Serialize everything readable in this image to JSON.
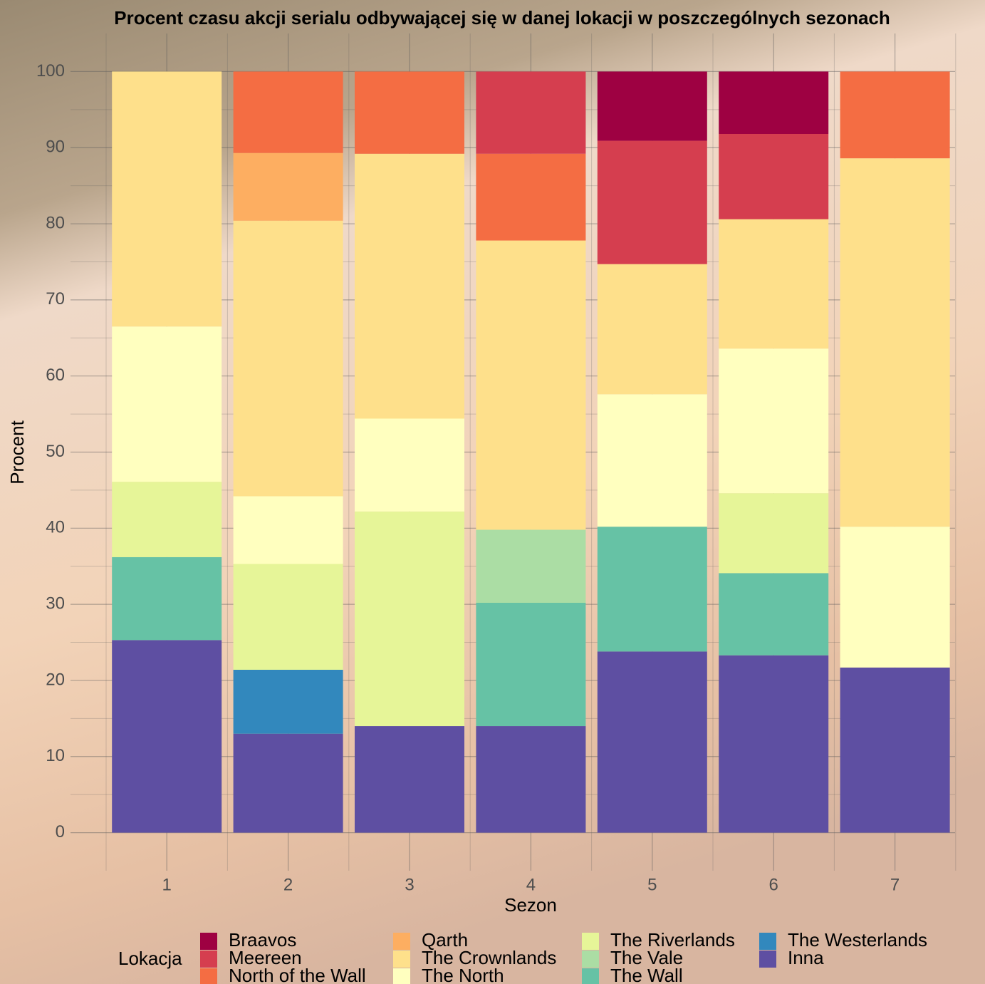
{
  "chart_data": {
    "type": "stacked_bar",
    "title": "Procent czasu akcji serialu odbywającej się w danej lokacji w poszczególnych sezonach",
    "x_label": "Sezon",
    "y_label": "Procent",
    "legend_title": "Lokacja",
    "categories": [
      "1",
      "2",
      "3",
      "4",
      "5",
      "6",
      "7"
    ],
    "series": [
      {
        "name": "Braavos",
        "color": "#9e0142",
        "values": [
          null,
          null,
          null,
          null,
          9.1,
          8.2,
          null
        ]
      },
      {
        "name": "Meereen",
        "color": "#d53e4f",
        "values": [
          null,
          null,
          null,
          10.8,
          16.2,
          11.2,
          null
        ]
      },
      {
        "name": "North of the Wall",
        "color": "#f46d43",
        "values": [
          null,
          10.7,
          10.8,
          11.4,
          null,
          null,
          11.4
        ]
      },
      {
        "name": "Qarth",
        "color": "#fdae61",
        "values": [
          null,
          8.9,
          null,
          null,
          null,
          null,
          null
        ]
      },
      {
        "name": "The Crownlands",
        "color": "#fee08b",
        "values": [
          33.5,
          36.2,
          34.8,
          38.0,
          17.1,
          17.0,
          48.4
        ]
      },
      {
        "name": "The North",
        "color": "#ffffbf",
        "values": [
          20.4,
          8.9,
          12.2,
          null,
          17.4,
          19.0,
          18.5
        ]
      },
      {
        "name": "The Riverlands",
        "color": "#e6f598",
        "values": [
          9.9,
          13.9,
          28.2,
          null,
          null,
          10.5,
          null
        ]
      },
      {
        "name": "The Vale",
        "color": "#abdda4",
        "values": [
          null,
          null,
          null,
          9.6,
          null,
          null,
          null
        ]
      },
      {
        "name": "The Wall",
        "color": "#66c2a5",
        "values": [
          10.9,
          null,
          null,
          16.2,
          16.4,
          10.8,
          null
        ]
      },
      {
        "name": "The Westerlands",
        "color": "#3288bd",
        "values": [
          null,
          8.4,
          null,
          null,
          null,
          null,
          null
        ]
      },
      {
        "name": "Inna",
        "color": "#5e4fa2",
        "values": [
          25.3,
          13.0,
          14.0,
          14.0,
          23.8,
          23.3,
          21.7
        ]
      }
    ],
    "ylim": [
      -5,
      105
    ],
    "yticks": [
      0,
      10,
      20,
      30,
      40,
      50,
      60,
      70,
      80,
      90,
      100
    ],
    "grid": true
  }
}
